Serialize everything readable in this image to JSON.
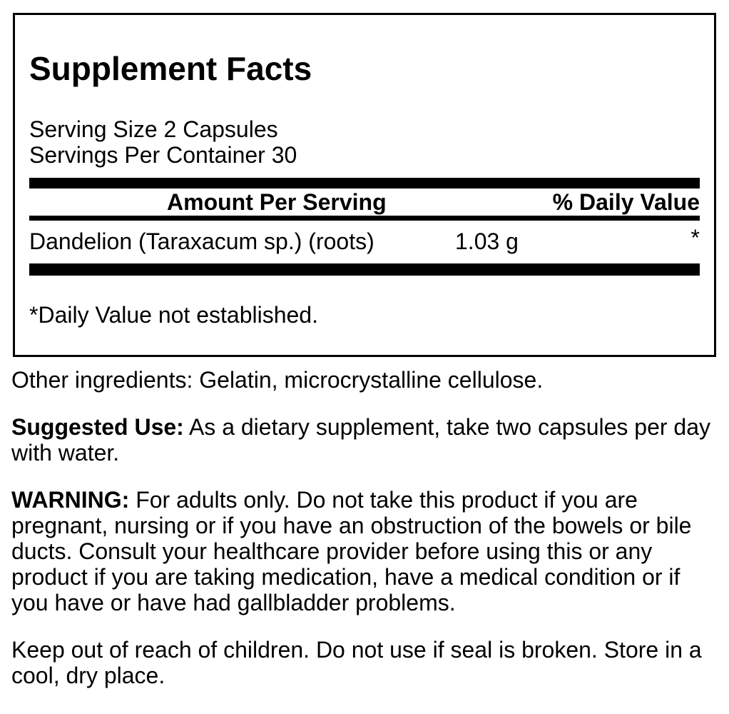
{
  "panel": {
    "title": "Supplement Facts",
    "serving_size": "Serving Size 2 Capsules",
    "servings_per_container": "Servings Per Container 30",
    "columns": {
      "amount": "Amount Per Serving",
      "daily_value": "% Daily Value"
    },
    "rows": [
      {
        "name": "Dandelion (Taraxacum sp.) (roots)",
        "amount": "1.03 g",
        "daily_value": "*"
      }
    ],
    "footnote": "*Daily Value not established."
  },
  "details": {
    "other_ingredients": "Other ingredients: Gelatin, microcrystalline cellulose.",
    "suggested_use_label": "Suggested Use:",
    "suggested_use_text": "As a dietary supplement, take two capsules per day\nwith water.",
    "warning_label": "WARNING:",
    "warning_text": "For adults only. Do not take this product if you are\npregnant, nursing or if you have an obstruction of the bowels or bile\nducts. Consult your healthcare provider before using this or any\nproduct if you are taking medication, have a medical condition or if\nyou have or have had gallbladder problems.",
    "storage": "Keep out of reach of children. Do not use if seal is broken. Store in a\ncool, dry place."
  },
  "colors": {
    "text": "#000000",
    "background": "#ffffff",
    "border": "#000000"
  }
}
